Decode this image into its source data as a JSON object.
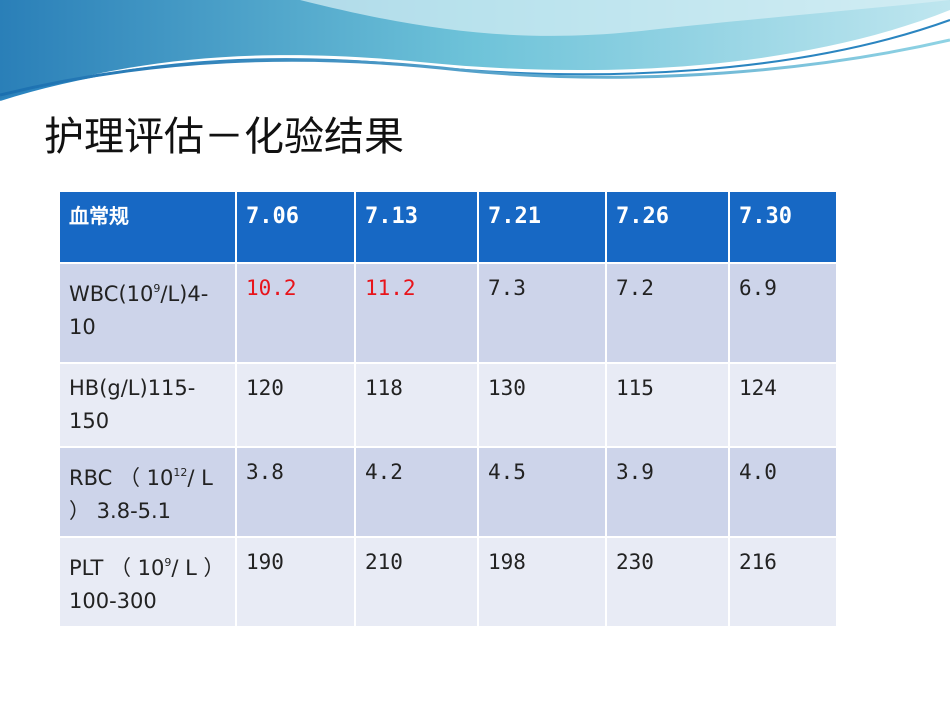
{
  "title": "护理评估－化验结果",
  "table": {
    "header": [
      "血常规",
      "7.06",
      "7.13",
      "7.21",
      "7.26",
      "7.30"
    ],
    "abnormal_color": "#e8141b",
    "rows": [
      {
        "label": {
          "pre": "WBC(10",
          "sup": "9",
          "post": "/L)4-10"
        },
        "cells": [
          "10.2",
          "11.2",
          "7.3",
          "7.2",
          "6.9"
        ],
        "abnormal": [
          true,
          true,
          false,
          false,
          false
        ]
      },
      {
        "label": {
          "pre": "HB(g/L)115-150"
        },
        "cells": [
          "120",
          "118",
          "130",
          "115",
          "124"
        ],
        "abnormal": [
          false,
          false,
          false,
          false,
          false
        ]
      },
      {
        "label": {
          "pre": "RBC （ 10",
          "sup": "12",
          "post": "/ L ） 3.8-5.1"
        },
        "cells": [
          "3.8",
          "4.2",
          "4.5",
          "3.9",
          "4.0"
        ],
        "abnormal": [
          false,
          false,
          false,
          false,
          false
        ]
      },
      {
        "label": {
          "pre": "PLT （ 10",
          "sup": "9",
          "post": "/ L ） 100-300"
        },
        "cells": [
          "190",
          "210",
          "198",
          "230",
          "216"
        ],
        "abnormal": [
          false,
          false,
          false,
          false,
          false
        ]
      }
    ]
  }
}
